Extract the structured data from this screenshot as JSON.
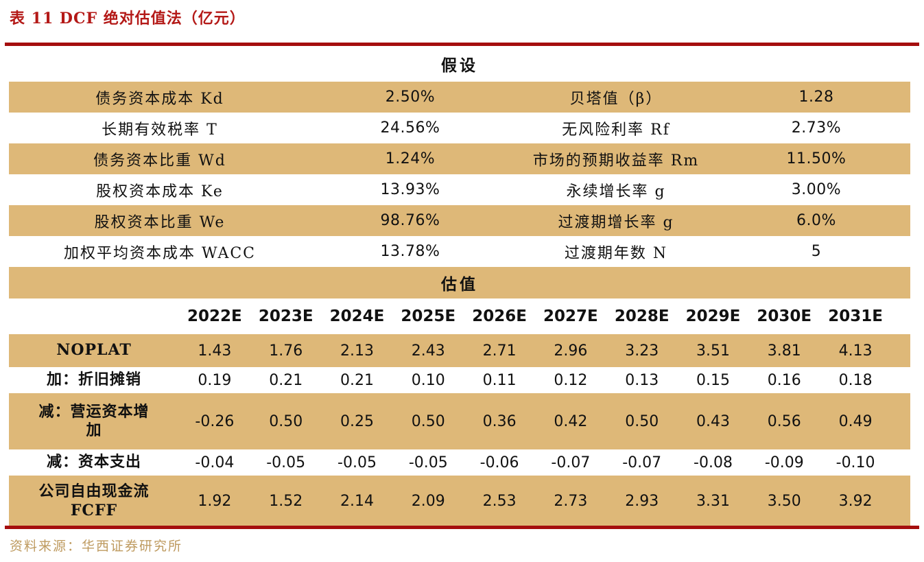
{
  "title": "表 11 DCF 绝对估值法（亿元）",
  "colors": {
    "accent_red": "#A50E0E",
    "title_red": "#B41917",
    "band_tan": "#DEB878",
    "source_gold": "#BE9A5F"
  },
  "assumptions": {
    "header": "假设",
    "rows": [
      {
        "label_left": "债务资本成本 Kd",
        "value_left": "2.50%",
        "label_right": "贝塔值（β）",
        "value_right": "1.28"
      },
      {
        "label_left": "长期有效税率 T",
        "value_left": "24.56%",
        "label_right": "无风险利率 Rf",
        "value_right": "2.73%"
      },
      {
        "label_left": "债务资本比重 Wd",
        "value_left": "1.24%",
        "label_right": "市场的预期收益率 Rm",
        "value_right": "11.50%"
      },
      {
        "label_left": "股权资本成本 Ke",
        "value_left": "13.93%",
        "label_right": "永续增长率 g",
        "value_right": "3.00%"
      },
      {
        "label_left": "股权资本比重 We",
        "value_left": "98.76%",
        "label_right": "过渡期增长率 g",
        "value_right": "6.0%"
      },
      {
        "label_left": "加权平均资本成本 WACC",
        "value_left": "13.78%",
        "label_right": "过渡期年数 N",
        "value_right": "5"
      }
    ]
  },
  "valuation": {
    "header": "估值",
    "years": [
      "2022E",
      "2023E",
      "2024E",
      "2025E",
      "2026E",
      "2027E",
      "2028E",
      "2029E",
      "2030E",
      "2031E"
    ],
    "rows": [
      {
        "label_lines": [
          "NOPLAT"
        ],
        "values": [
          "1.43",
          "1.76",
          "2.13",
          "2.43",
          "2.71",
          "2.96",
          "3.23",
          "3.51",
          "3.81",
          "4.13"
        ]
      },
      {
        "label_lines": [
          "加：折旧摊销"
        ],
        "values": [
          "0.19",
          "0.21",
          "0.21",
          "0.10",
          "0.11",
          "0.12",
          "0.13",
          "0.15",
          "0.16",
          "0.18"
        ]
      },
      {
        "label_lines": [
          "减：营运资本增",
          "加"
        ],
        "values": [
          "-0.26",
          "0.50",
          "0.25",
          "0.50",
          "0.36",
          "0.42",
          "0.50",
          "0.43",
          "0.56",
          "0.49"
        ]
      },
      {
        "label_lines": [
          "减：资本支出"
        ],
        "values": [
          "-0.04",
          "-0.05",
          "-0.05",
          "-0.05",
          "-0.06",
          "-0.07",
          "-0.07",
          "-0.08",
          "-0.09",
          "-0.10"
        ]
      },
      {
        "label_lines": [
          "公司自由现金流",
          "FCFF"
        ],
        "values": [
          "1.92",
          "1.52",
          "2.14",
          "2.09",
          "2.53",
          "2.73",
          "2.93",
          "3.31",
          "3.50",
          "3.92"
        ]
      }
    ]
  },
  "source": "资料来源：华西证券研究所"
}
